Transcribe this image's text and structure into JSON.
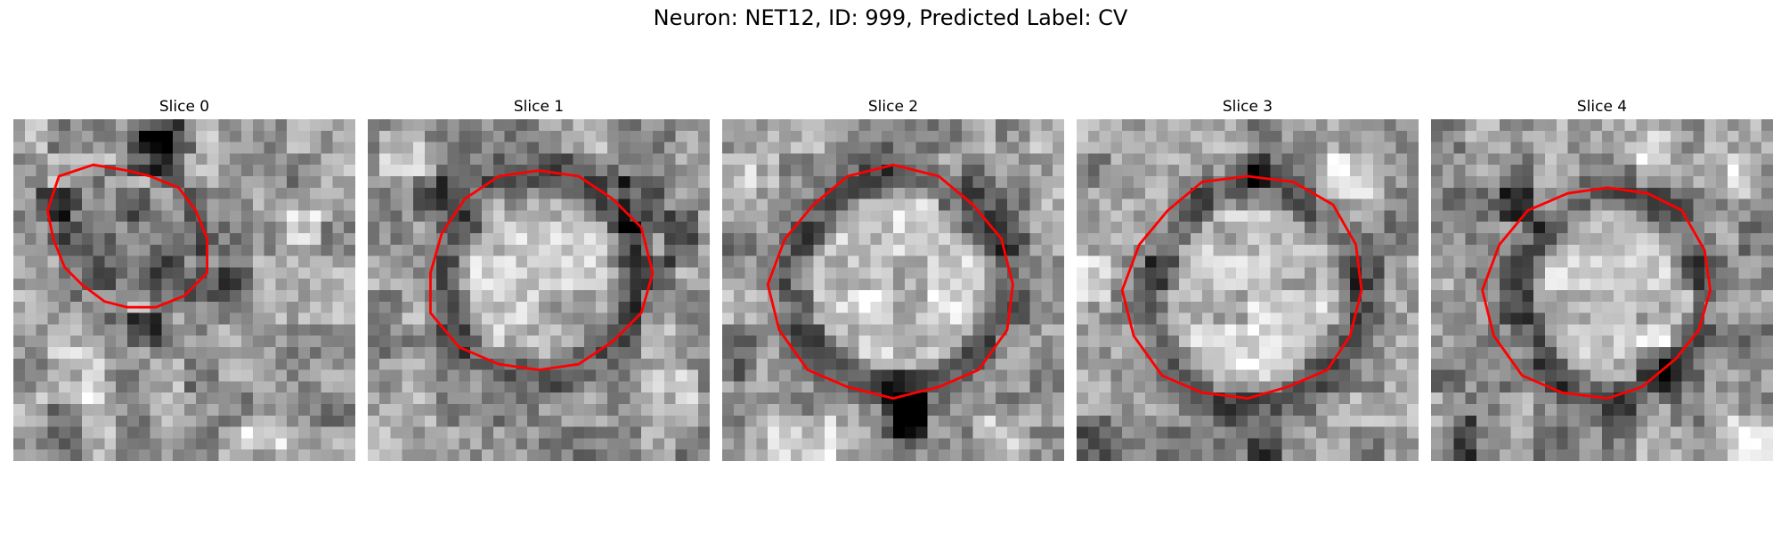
{
  "figure": {
    "title": "Neuron: NET12, ID: 999, Predicted Label: CV"
  },
  "colors": {
    "contour": "#ff0000",
    "background": "#ffffff"
  },
  "panels": [
    {
      "title": "Slice 0"
    },
    {
      "title": "Slice 1"
    },
    {
      "title": "Slice 2"
    },
    {
      "title": "Slice 3"
    },
    {
      "title": "Slice 4"
    }
  ]
}
